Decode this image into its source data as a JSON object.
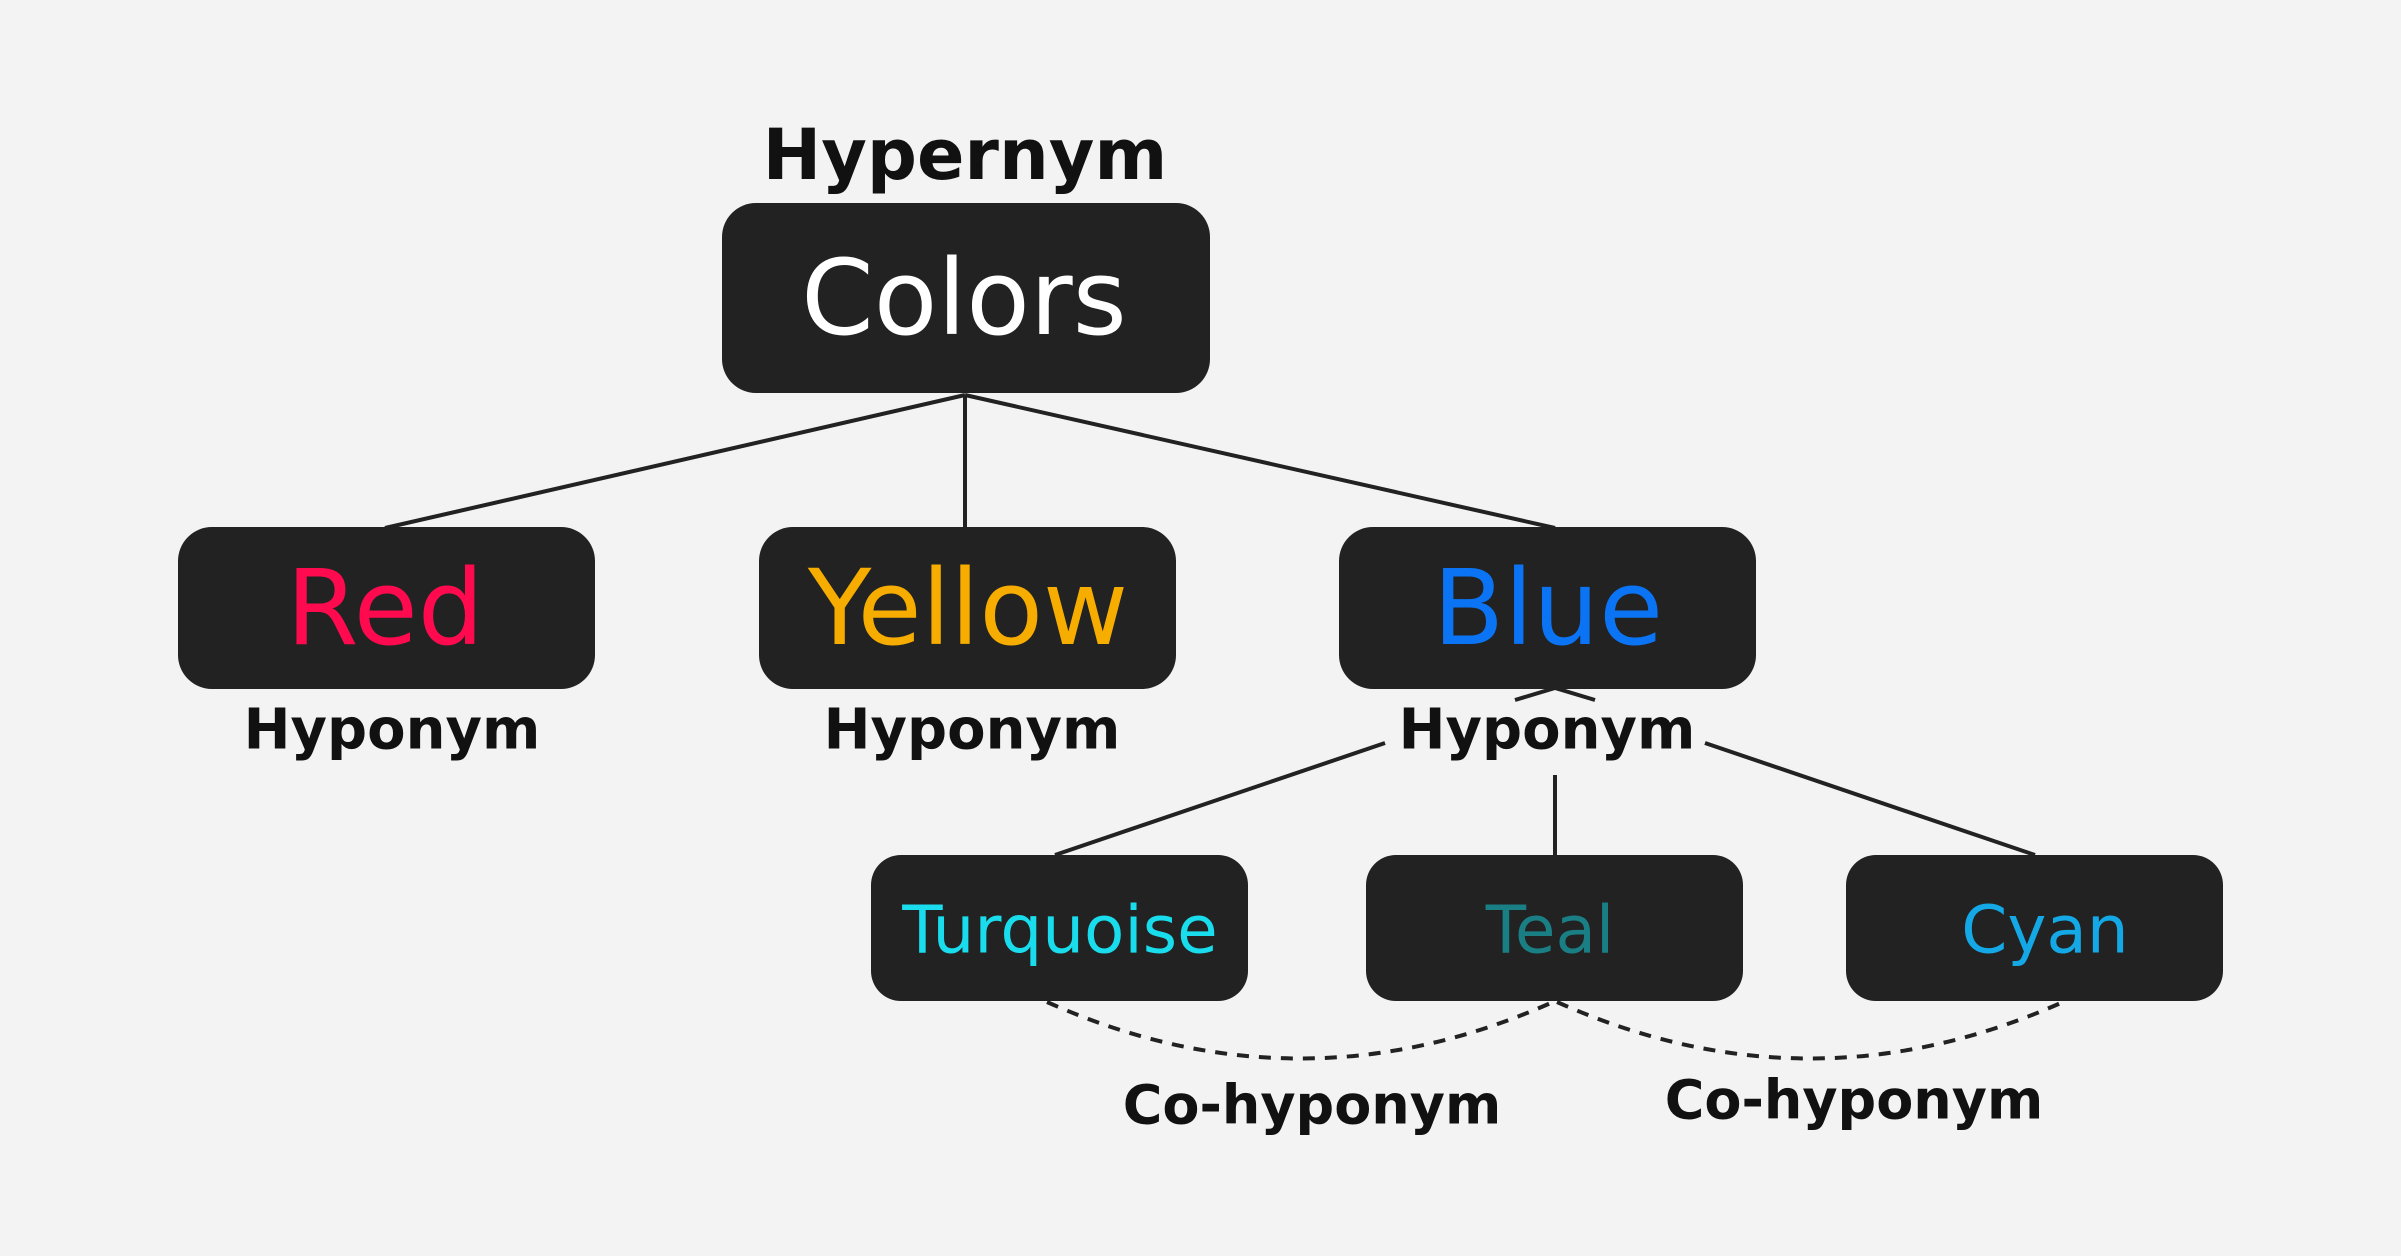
{
  "diagram": {
    "root": {
      "role": "Hypernym",
      "label": "Colors",
      "color": "#ffffff"
    },
    "level1": [
      {
        "label": "Red",
        "color": "#ff0a4f",
        "role": "Hyponym"
      },
      {
        "label": "Yellow",
        "color": "#f7ad00",
        "role": "Hyponym"
      },
      {
        "label": "Blue",
        "color": "#0a74f5",
        "role": "Hyponym"
      }
    ],
    "level2": [
      {
        "label": "Turquoise",
        "color": "#19dcec"
      },
      {
        "label": "Teal",
        "color": "#1a7f84"
      },
      {
        "label": "Cyan",
        "color": "#14a9e6"
      }
    ],
    "co_hyponym_labels": [
      "Co-hyponym",
      "Co-hyponym"
    ]
  }
}
